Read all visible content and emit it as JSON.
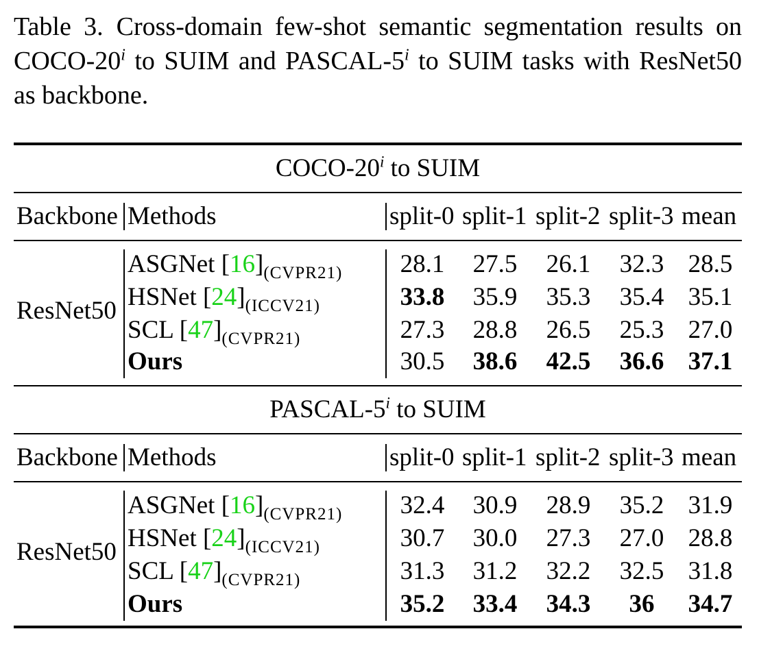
{
  "caption": {
    "prefix": "Table 3. Cross-domain few-shot semantic segmentation results on COCO-20",
    "sup1": "i",
    "middle": " to SUIM and PASCAL-5",
    "sup2": "i",
    "suffix": " to SUIM tasks with ResNet50 as backbone."
  },
  "columns": [
    "Backbone",
    "Methods",
    "split-0",
    "split-1",
    "split-2",
    "split-3",
    "mean"
  ],
  "sections": [
    {
      "title_base": "COCO-20",
      "title_sup": "i",
      "title_rest": " to SUIM",
      "backbone": "ResNet50",
      "rows": [
        {
          "method": "ASGNet [",
          "ref": "16",
          "close": "]",
          "venue": "(CVPR21)",
          "values": [
            "28.1",
            "27.5",
            "26.1",
            "32.3",
            "28.5"
          ]
        },
        {
          "method": "HSNet [",
          "ref": "24",
          "close": "]",
          "venue": "(ICCV21)",
          "values": [
            "33.8",
            "35.9",
            "35.3",
            "35.4",
            "35.1"
          ]
        },
        {
          "method": "SCL [",
          "ref": "47",
          "close": "]",
          "venue": "(CVPR21)",
          "values": [
            "27.3",
            "28.8",
            "26.5",
            "25.3",
            "27.0"
          ]
        },
        {
          "method": "Ours",
          "ref": "",
          "close": "",
          "venue": "",
          "values": [
            "30.5",
            "38.6",
            "42.5",
            "36.6",
            "37.1"
          ]
        }
      ]
    },
    {
      "title_base": "PASCAL-5",
      "title_sup": "i",
      "title_rest": " to SUIM",
      "backbone": "ResNet50",
      "rows": [
        {
          "method": "ASGNet [",
          "ref": "16",
          "close": "]",
          "venue": "(CVPR21)",
          "values": [
            "32.4",
            "30.9",
            "28.9",
            "35.2",
            "31.9"
          ]
        },
        {
          "method": "HSNet [",
          "ref": "24",
          "close": "]",
          "venue": "(ICCV21)",
          "values": [
            "30.7",
            "30.0",
            "27.3",
            "27.0",
            "28.8"
          ]
        },
        {
          "method": "SCL [",
          "ref": "47",
          "close": "]",
          "venue": "(CVPR21)",
          "values": [
            "31.3",
            "31.2",
            "32.2",
            "32.5",
            "31.8"
          ]
        },
        {
          "method": "Ours",
          "ref": "",
          "close": "",
          "venue": "",
          "values": [
            "35.2",
            "33.4",
            "34.3",
            "36",
            "34.7"
          ]
        }
      ]
    }
  ]
}
